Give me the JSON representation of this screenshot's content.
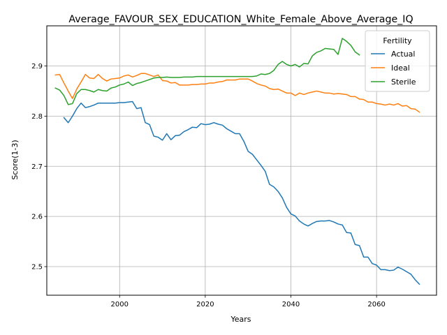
{
  "chart_data": {
    "type": "line",
    "title": "Average_FAVOUR_SEX_EDUCATION_White_Female_Above_Average_IQ",
    "xlabel": "Years",
    "ylabel": "Score(1-3)",
    "xlim": [
      1983,
      2074
    ],
    "ylim": [
      2.443,
      2.98
    ],
    "xticks": [
      2000,
      2020,
      2040,
      2060
    ],
    "xtick_labels": [
      "2000",
      "2020",
      "2040",
      "2060"
    ],
    "yticks": [
      2.5,
      2.6,
      2.7,
      2.8,
      2.9
    ],
    "ytick_labels": [
      "2.5",
      "2.6",
      "2.7",
      "2.8",
      "2.9"
    ],
    "grid": true,
    "legend": {
      "title": "Fertility",
      "position": "top-right"
    },
    "series": [
      {
        "name": "Actual",
        "color": "#1f77b4",
        "points": [
          [
            1987,
            2.797
          ],
          [
            1988,
            2.787
          ],
          [
            1989,
            2.8
          ],
          [
            1990,
            2.815
          ],
          [
            1991,
            2.826
          ],
          [
            1992,
            2.817
          ],
          [
            1993,
            2.819
          ],
          [
            1994,
            2.822
          ],
          [
            1995,
            2.826
          ],
          [
            1996,
            2.826
          ],
          [
            1997,
            2.826
          ],
          [
            1998,
            2.826
          ],
          [
            1999,
            2.826
          ],
          [
            2000,
            2.827
          ],
          [
            2001,
            2.827
          ],
          [
            2002,
            2.828
          ],
          [
            2003,
            2.829
          ],
          [
            2004,
            2.815
          ],
          [
            2005,
            2.817
          ],
          [
            2006,
            2.787
          ],
          [
            2007,
            2.783
          ],
          [
            2008,
            2.76
          ],
          [
            2009,
            2.758
          ],
          [
            2010,
            2.752
          ],
          [
            2011,
            2.765
          ],
          [
            2012,
            2.753
          ],
          [
            2013,
            2.761
          ],
          [
            2014,
            2.762
          ],
          [
            2015,
            2.769
          ],
          [
            2016,
            2.773
          ],
          [
            2017,
            2.778
          ],
          [
            2018,
            2.777
          ],
          [
            2019,
            2.785
          ],
          [
            2020,
            2.783
          ],
          [
            2021,
            2.784
          ],
          [
            2022,
            2.787
          ],
          [
            2023,
            2.784
          ],
          [
            2024,
            2.782
          ],
          [
            2025,
            2.775
          ],
          [
            2026,
            2.77
          ],
          [
            2027,
            2.765
          ],
          [
            2028,
            2.765
          ],
          [
            2029,
            2.75
          ],
          [
            2030,
            2.73
          ],
          [
            2031,
            2.724
          ],
          [
            2032,
            2.713
          ],
          [
            2033,
            2.702
          ],
          [
            2034,
            2.69
          ],
          [
            2035,
            2.664
          ],
          [
            2036,
            2.659
          ],
          [
            2037,
            2.65
          ],
          [
            2038,
            2.637
          ],
          [
            2039,
            2.618
          ],
          [
            2040,
            2.605
          ],
          [
            2041,
            2.601
          ],
          [
            2042,
            2.591
          ],
          [
            2043,
            2.585
          ],
          [
            2044,
            2.581
          ],
          [
            2045,
            2.586
          ],
          [
            2046,
            2.59
          ],
          [
            2047,
            2.591
          ],
          [
            2048,
            2.591
          ],
          [
            2049,
            2.592
          ],
          [
            2050,
            2.589
          ],
          [
            2051,
            2.585
          ],
          [
            2052,
            2.583
          ],
          [
            2053,
            2.568
          ],
          [
            2054,
            2.567
          ],
          [
            2055,
            2.544
          ],
          [
            2056,
            2.542
          ],
          [
            2057,
            2.519
          ],
          [
            2058,
            2.519
          ],
          [
            2059,
            2.506
          ],
          [
            2060,
            2.503
          ],
          [
            2061,
            2.494
          ],
          [
            2062,
            2.494
          ],
          [
            2063,
            2.492
          ],
          [
            2064,
            2.493
          ],
          [
            2065,
            2.499
          ],
          [
            2066,
            2.495
          ],
          [
            2067,
            2.49
          ],
          [
            2068,
            2.485
          ],
          [
            2069,
            2.474
          ],
          [
            2070,
            2.465
          ]
        ]
      },
      {
        "name": "Ideal",
        "color": "#ff7f0e",
        "points": [
          [
            1985,
            2.882
          ],
          [
            1986,
            2.883
          ],
          [
            1987,
            2.866
          ],
          [
            1988,
            2.85
          ],
          [
            1989,
            2.835
          ],
          [
            1990,
            2.854
          ],
          [
            1991,
            2.868
          ],
          [
            1992,
            2.883
          ],
          [
            1993,
            2.876
          ],
          [
            1994,
            2.875
          ],
          [
            1995,
            2.883
          ],
          [
            1996,
            2.875
          ],
          [
            1997,
            2.87
          ],
          [
            1998,
            2.874
          ],
          [
            1999,
            2.875
          ],
          [
            2000,
            2.876
          ],
          [
            2001,
            2.88
          ],
          [
            2002,
            2.882
          ],
          [
            2003,
            2.878
          ],
          [
            2004,
            2.881
          ],
          [
            2005,
            2.885
          ],
          [
            2006,
            2.885
          ],
          [
            2007,
            2.882
          ],
          [
            2008,
            2.879
          ],
          [
            2009,
            2.882
          ],
          [
            2010,
            2.871
          ],
          [
            2011,
            2.87
          ],
          [
            2012,
            2.866
          ],
          [
            2013,
            2.867
          ],
          [
            2014,
            2.862
          ],
          [
            2015,
            2.862
          ],
          [
            2016,
            2.862
          ],
          [
            2017,
            2.863
          ],
          [
            2018,
            2.863
          ],
          [
            2019,
            2.864
          ],
          [
            2020,
            2.864
          ],
          [
            2021,
            2.866
          ],
          [
            2022,
            2.866
          ],
          [
            2023,
            2.868
          ],
          [
            2024,
            2.869
          ],
          [
            2025,
            2.872
          ],
          [
            2026,
            2.872
          ],
          [
            2027,
            2.872
          ],
          [
            2028,
            2.874
          ],
          [
            2029,
            2.874
          ],
          [
            2030,
            2.874
          ],
          [
            2031,
            2.87
          ],
          [
            2032,
            2.865
          ],
          [
            2033,
            2.862
          ],
          [
            2034,
            2.86
          ],
          [
            2035,
            2.855
          ],
          [
            2036,
            2.853
          ],
          [
            2037,
            2.854
          ],
          [
            2038,
            2.85
          ],
          [
            2039,
            2.846
          ],
          [
            2040,
            2.846
          ],
          [
            2041,
            2.841
          ],
          [
            2042,
            2.846
          ],
          [
            2043,
            2.843
          ],
          [
            2044,
            2.846
          ],
          [
            2045,
            2.848
          ],
          [
            2046,
            2.85
          ],
          [
            2047,
            2.848
          ],
          [
            2048,
            2.846
          ],
          [
            2049,
            2.846
          ],
          [
            2050,
            2.844
          ],
          [
            2051,
            2.845
          ],
          [
            2052,
            2.844
          ],
          [
            2053,
            2.843
          ],
          [
            2054,
            2.839
          ],
          [
            2055,
            2.839
          ],
          [
            2056,
            2.834
          ],
          [
            2057,
            2.833
          ],
          [
            2058,
            2.828
          ],
          [
            2059,
            2.828
          ],
          [
            2060,
            2.825
          ],
          [
            2061,
            2.824
          ],
          [
            2062,
            2.822
          ],
          [
            2063,
            2.824
          ],
          [
            2064,
            2.822
          ],
          [
            2065,
            2.825
          ],
          [
            2066,
            2.82
          ],
          [
            2067,
            2.821
          ],
          [
            2068,
            2.815
          ],
          [
            2069,
            2.814
          ],
          [
            2070,
            2.808
          ]
        ]
      },
      {
        "name": "Sterile",
        "color": "#2ca02c",
        "points": [
          [
            1985,
            2.856
          ],
          [
            1986,
            2.852
          ],
          [
            1987,
            2.841
          ],
          [
            1988,
            2.823
          ],
          [
            1989,
            2.825
          ],
          [
            1990,
            2.845
          ],
          [
            1991,
            2.853
          ],
          [
            1992,
            2.853
          ],
          [
            1993,
            2.851
          ],
          [
            1994,
            2.848
          ],
          [
            1995,
            2.853
          ],
          [
            1996,
            2.851
          ],
          [
            1997,
            2.85
          ],
          [
            1998,
            2.856
          ],
          [
            1999,
            2.858
          ],
          [
            2000,
            2.862
          ],
          [
            2001,
            2.864
          ],
          [
            2002,
            2.868
          ],
          [
            2003,
            2.861
          ],
          [
            2004,
            2.865
          ],
          [
            2005,
            2.867
          ],
          [
            2006,
            2.87
          ],
          [
            2007,
            2.873
          ],
          [
            2008,
            2.876
          ],
          [
            2009,
            2.877
          ],
          [
            2010,
            2.877
          ],
          [
            2011,
            2.878
          ],
          [
            2012,
            2.877
          ],
          [
            2013,
            2.877
          ],
          [
            2014,
            2.877
          ],
          [
            2015,
            2.878
          ],
          [
            2016,
            2.878
          ],
          [
            2017,
            2.878
          ],
          [
            2018,
            2.879
          ],
          [
            2019,
            2.879
          ],
          [
            2020,
            2.879
          ],
          [
            2021,
            2.879
          ],
          [
            2022,
            2.879
          ],
          [
            2023,
            2.879
          ],
          [
            2024,
            2.879
          ],
          [
            2025,
            2.879
          ],
          [
            2026,
            2.879
          ],
          [
            2027,
            2.879
          ],
          [
            2028,
            2.879
          ],
          [
            2029,
            2.879
          ],
          [
            2030,
            2.879
          ],
          [
            2031,
            2.879
          ],
          [
            2032,
            2.88
          ],
          [
            2033,
            2.884
          ],
          [
            2034,
            2.883
          ],
          [
            2035,
            2.885
          ],
          [
            2036,
            2.891
          ],
          [
            2037,
            2.903
          ],
          [
            2038,
            2.909
          ],
          [
            2039,
            2.903
          ],
          [
            2040,
            2.9
          ],
          [
            2041,
            2.903
          ],
          [
            2042,
            2.898
          ],
          [
            2043,
            2.905
          ],
          [
            2044,
            2.904
          ],
          [
            2045,
            2.92
          ],
          [
            2046,
            2.927
          ],
          [
            2047,
            2.93
          ],
          [
            2048,
            2.935
          ],
          [
            2049,
            2.934
          ],
          [
            2050,
            2.933
          ],
          [
            2051,
            2.923
          ],
          [
            2052,
            2.955
          ],
          [
            2053,
            2.949
          ],
          [
            2054,
            2.941
          ],
          [
            2055,
            2.928
          ],
          [
            2056,
            2.922
          ]
        ]
      }
    ]
  }
}
